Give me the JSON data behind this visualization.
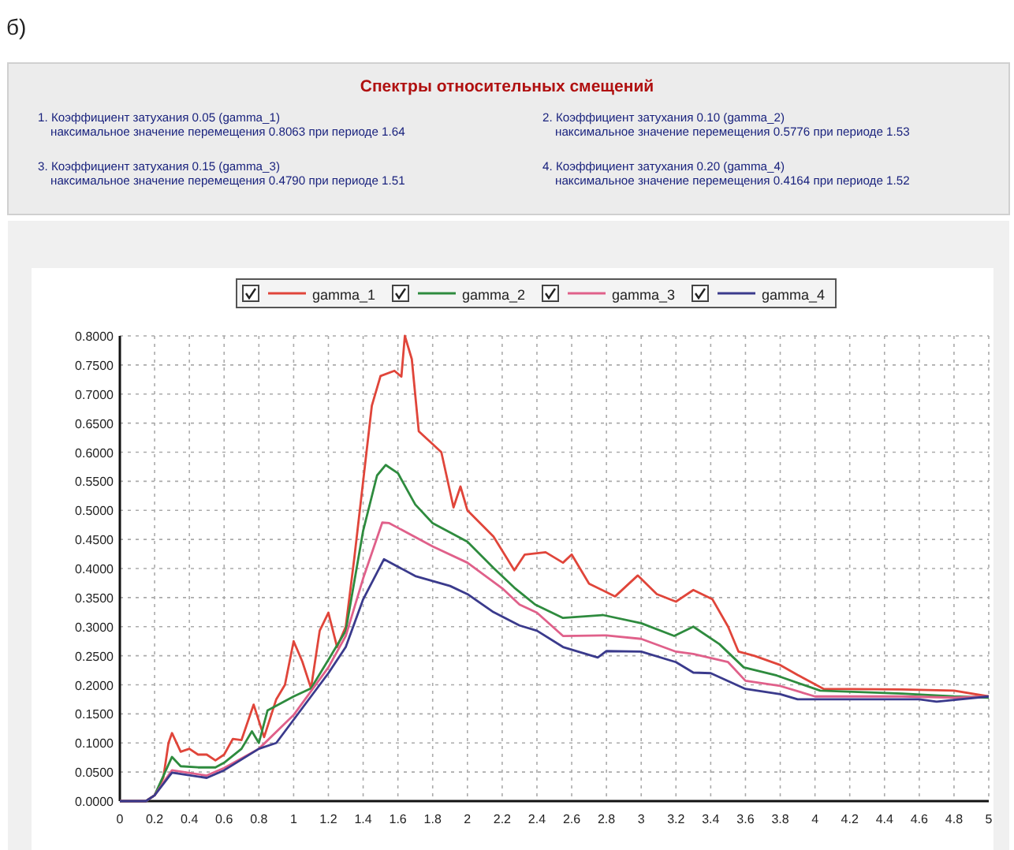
{
  "chart_data": {
    "type": "line",
    "title": "Спектры относительных смещений",
    "annotations": [
      "б)",
      "1. Коэффициент затухания  0.05 (gamma_1)\nнаксимальное значение перемещения 0.8063 при периоде 1.64",
      "2. Коэффициент затухания  0.10 (gamma_2)\nнаксимальное значение перемещения 0.5776 при периоде 1.53",
      "3. Коэффициент затухания  0.15 (gamma_3)\nнаксимальное значение перемещения 0.4790 при периоде 1.51",
      "4. Коэффициент затухания  0.20 (gamma_4)\nнаксимальное значение перемещения 0.4164 при периоде 1.52"
    ],
    "series": [
      {
        "name": "gamma_1",
        "color": "#e0453a",
        "x": [
          0,
          0.15,
          0.2,
          0.25,
          0.28,
          0.3,
          0.35,
          0.4,
          0.45,
          0.5,
          0.55,
          0.6,
          0.65,
          0.7,
          0.77,
          0.83,
          0.9,
          0.95,
          1.0,
          1.05,
          1.1,
          1.15,
          1.2,
          1.25,
          1.3,
          1.35,
          1.4,
          1.45,
          1.5,
          1.58,
          1.62,
          1.64,
          1.68,
          1.72,
          1.8,
          1.85,
          1.92,
          1.96,
          2.0,
          2.15,
          2.27,
          2.33,
          2.45,
          2.55,
          2.6,
          2.7,
          2.85,
          2.98,
          3.09,
          3.2,
          3.3,
          3.41,
          3.5,
          3.56,
          3.65,
          3.8,
          3.9,
          4.05,
          4.5,
          4.8,
          5.0
        ],
        "values": [
          0,
          0,
          0.01,
          0.04,
          0.1,
          0.117,
          0.085,
          0.09,
          0.08,
          0.08,
          0.07,
          0.08,
          0.107,
          0.105,
          0.166,
          0.11,
          0.175,
          0.2,
          0.275,
          0.24,
          0.194,
          0.293,
          0.324,
          0.265,
          0.3,
          0.42,
          0.55,
          0.68,
          0.731,
          0.74,
          0.73,
          0.8,
          0.76,
          0.636,
          0.614,
          0.6,
          0.505,
          0.541,
          0.5,
          0.455,
          0.397,
          0.424,
          0.428,
          0.41,
          0.424,
          0.374,
          0.352,
          0.388,
          0.356,
          0.343,
          0.363,
          0.347,
          0.3,
          0.257,
          0.25,
          0.234,
          0.217,
          0.193,
          0.192,
          0.19,
          0.18
        ]
      },
      {
        "name": "gamma_2",
        "color": "#2e8b3e",
        "x": [
          0,
          0.15,
          0.2,
          0.3,
          0.35,
          0.45,
          0.55,
          0.6,
          0.7,
          0.76,
          0.8,
          0.85,
          1.0,
          1.1,
          1.2,
          1.3,
          1.4,
          1.48,
          1.53,
          1.6,
          1.7,
          1.8,
          2.0,
          2.15,
          2.27,
          2.39,
          2.55,
          2.78,
          3.0,
          3.19,
          3.3,
          3.45,
          3.59,
          3.78,
          4.03,
          4.5,
          4.8,
          5.0
        ],
        "values": [
          0,
          0,
          0.01,
          0.076,
          0.06,
          0.058,
          0.058,
          0.066,
          0.09,
          0.12,
          0.1,
          0.156,
          0.18,
          0.194,
          0.243,
          0.293,
          0.465,
          0.56,
          0.578,
          0.564,
          0.51,
          0.478,
          0.446,
          0.401,
          0.367,
          0.338,
          0.315,
          0.32,
          0.306,
          0.284,
          0.3,
          0.27,
          0.23,
          0.216,
          0.19,
          0.185,
          0.18,
          0.178
        ]
      },
      {
        "name": "gamma_3",
        "color": "#e0608a",
        "x": [
          0,
          0.15,
          0.2,
          0.3,
          0.5,
          0.6,
          0.8,
          1.0,
          1.2,
          1.3,
          1.4,
          1.51,
          1.55,
          1.6,
          1.8,
          2.0,
          2.2,
          2.3,
          2.4,
          2.55,
          2.8,
          3.0,
          3.2,
          3.3,
          3.5,
          3.6,
          3.8,
          4.0,
          4.5,
          4.8,
          5.0
        ],
        "values": [
          0,
          0,
          0.01,
          0.053,
          0.044,
          0.057,
          0.09,
          0.148,
          0.23,
          0.284,
          0.383,
          0.479,
          0.478,
          0.47,
          0.438,
          0.41,
          0.366,
          0.338,
          0.324,
          0.284,
          0.285,
          0.279,
          0.257,
          0.253,
          0.239,
          0.207,
          0.198,
          0.18,
          0.18,
          0.178,
          0.18
        ]
      },
      {
        "name": "gamma_4",
        "color": "#3a3a8c",
        "x": [
          0,
          0.15,
          0.2,
          0.3,
          0.5,
          0.6,
          0.8,
          0.9,
          1.0,
          1.2,
          1.3,
          1.4,
          1.52,
          1.7,
          1.9,
          2.0,
          2.15,
          2.3,
          2.4,
          2.55,
          2.75,
          2.8,
          3.0,
          3.2,
          3.3,
          3.4,
          3.6,
          3.8,
          3.9,
          4.6,
          4.7,
          5.0
        ],
        "values": [
          0,
          0,
          0.01,
          0.049,
          0.04,
          0.053,
          0.09,
          0.1,
          0.14,
          0.22,
          0.265,
          0.347,
          0.416,
          0.387,
          0.37,
          0.356,
          0.325,
          0.302,
          0.293,
          0.265,
          0.247,
          0.258,
          0.257,
          0.239,
          0.221,
          0.22,
          0.193,
          0.184,
          0.175,
          0.175,
          0.171,
          0.18
        ]
      }
    ],
    "xlim": [
      0,
      5
    ],
    "xticks": [
      0,
      0.2,
      0.4,
      0.6,
      0.8,
      1,
      1.2,
      1.4,
      1.6,
      1.8,
      2,
      2.2,
      2.4,
      2.6,
      2.8,
      3,
      3.2,
      3.4,
      3.6,
      3.8,
      4,
      4.2,
      4.4,
      4.6,
      4.8,
      5
    ],
    "ylim": [
      0,
      0.8
    ],
    "yticks": [
      {
        "value": 0,
        "label": "0.0000"
      },
      {
        "value": 0.05,
        "label": "0.0500"
      },
      {
        "value": 0.1,
        "label": "0.1000"
      },
      {
        "value": 0.15,
        "label": "0.1500"
      },
      {
        "value": 0.2,
        "label": "0.2000"
      },
      {
        "value": 0.25,
        "label": "0.2500"
      },
      {
        "value": 0.3,
        "label": "0.3000"
      },
      {
        "value": 0.35,
        "label": "0.3500"
      },
      {
        "value": 0.4,
        "label": "0.4000"
      },
      {
        "value": 0.45,
        "label": "0.4500"
      },
      {
        "value": 0.5,
        "label": "0.5000"
      },
      {
        "value": 0.55,
        "label": "0.5500"
      },
      {
        "value": 0.6,
        "label": "0.6000"
      },
      {
        "value": 0.65,
        "label": "0.6500"
      },
      {
        "value": 0.7,
        "label": "0.7000"
      },
      {
        "value": 0.75,
        "label": "0.7500"
      },
      {
        "value": 0.8,
        "label": "0.8000"
      }
    ],
    "grid": true,
    "legend": "top",
    "marker": "none",
    "line_style": "solid"
  }
}
